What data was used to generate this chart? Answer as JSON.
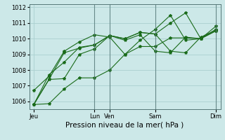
{
  "bg_color": "#cce8e8",
  "grid_color": "#aad0d0",
  "line_color": "#1a6b1a",
  "marker": "*",
  "markersize": 3,
  "linewidth": 0.8,
  "ylim": [
    1005.5,
    1012.2
  ],
  "yticks": [
    1006,
    1007,
    1008,
    1009,
    1010,
    1011,
    1012
  ],
  "xlabel": "Pression niveau de la mer( hPa )",
  "xlabel_fontsize": 7.5,
  "tick_fontsize": 6,
  "xtick_labels": [
    "Jeu",
    "Lun",
    "Ven",
    "Sam",
    "Dim"
  ],
  "xtick_positions": [
    0,
    4,
    5,
    8,
    12
  ],
  "vline_positions": [
    4,
    5,
    8,
    12
  ],
  "lines": [
    [
      1005.8,
      1005.85,
      1006.8,
      1007.5,
      1007.5,
      1008.0,
      1009.0,
      1009.5,
      1009.5,
      1010.05,
      1010.05,
      1010.0,
      1010.5
    ],
    [
      1005.8,
      1007.4,
      1007.45,
      1009.0,
      1009.35,
      1010.2,
      1010.0,
      1010.4,
      1010.3,
      1009.2,
      1009.1,
      1010.1,
      1010.55
    ],
    [
      1005.8,
      1007.7,
      1008.5,
      1009.45,
      1009.6,
      1010.2,
      1009.9,
      1010.25,
      1009.2,
      1009.1,
      1010.1,
      1010.0,
      1010.5
    ],
    [
      1005.8,
      1007.4,
      1009.1,
      1009.4,
      1009.6,
      1010.2,
      1010.0,
      1010.4,
      1010.3,
      1011.0,
      1011.65,
      1010.0,
      1010.8
    ],
    [
      1006.7,
      1007.6,
      1009.2,
      1009.8,
      1010.25,
      1010.1,
      1009.0,
      1009.9,
      1010.6,
      1011.5,
      1009.9,
      1010.0,
      1010.6
    ]
  ]
}
